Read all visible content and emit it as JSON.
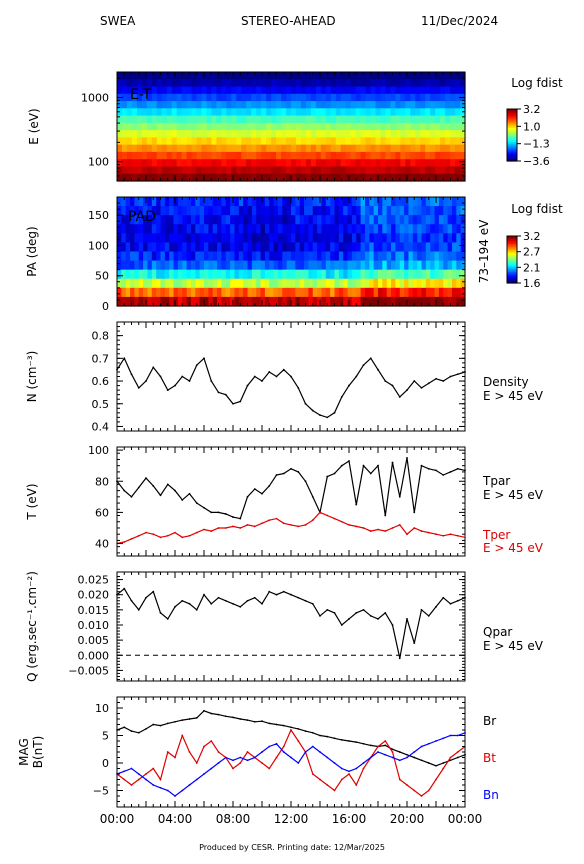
{
  "header": {
    "instrument": "SWEA",
    "spacecraft": "STEREO-AHEAD",
    "date": "11/Dec/2024"
  },
  "footer": "Produced by CESR.    Printing date: 12/Mar/2025",
  "colors": {
    "black": "#000000",
    "red": "#e00000",
    "blue": "#0000ff"
  },
  "time_axis": {
    "labels": [
      "00:00",
      "04:00",
      "08:00",
      "12:00",
      "16:00",
      "20:00",
      "00:00"
    ],
    "range_hours": [
      0,
      24
    ]
  },
  "chart_data": [
    {
      "type": "heatmap",
      "panel_label": "E-T",
      "ylabel": "E (eV)",
      "yscale": "log",
      "ylim": [
        50,
        2500
      ],
      "yticks": [
        "1000",
        "100"
      ],
      "colorbar": {
        "title": "Log fdist",
        "ticks": [
          "3.2",
          "1.0",
          "−1.3",
          "−3.6"
        ]
      },
      "energy_bands_eV": [
        2200,
        1700,
        1300,
        1000,
        780,
        600,
        460,
        360,
        280,
        215,
        165,
        128,
        98,
        76,
        60
      ],
      "band_log_fdist": [
        -3.6,
        -3.3,
        -2.8,
        -2.3,
        -1.8,
        -1.2,
        -0.6,
        -0.1,
        0.4,
        0.9,
        1.4,
        1.9,
        2.4,
        2.8,
        3.2
      ]
    },
    {
      "type": "heatmap",
      "panel_label": "PAD",
      "ylabel": "PA (deg)",
      "ylim": [
        0,
        180
      ],
      "yticks": [
        "150",
        "100",
        "50",
        "0"
      ],
      "right_label": "73–194 eV",
      "colorbar": {
        "title": "Log fdist",
        "ticks": [
          "3.2",
          "2.7",
          "2.1",
          "1.6"
        ]
      },
      "pitch_angle_bands_deg": [
        175,
        160,
        145,
        130,
        115,
        100,
        85,
        70,
        55,
        40,
        25,
        10
      ],
      "band_log_fdist": [
        1.85,
        1.82,
        1.8,
        1.78,
        1.76,
        1.78,
        1.85,
        1.95,
        2.2,
        2.5,
        2.85,
        3.1
      ]
    },
    {
      "type": "line",
      "ylabel": "N (cm⁻³)",
      "ylim": [
        0.38,
        0.86
      ],
      "yticks": [
        "0.8",
        "0.7",
        "0.6",
        "0.5",
        "0.4"
      ],
      "series": [
        {
          "name": "Density",
          "sublabel": "E > 45 eV",
          "color": "#000000",
          "x": [
            0,
            0.5,
            1,
            1.5,
            2,
            2.5,
            3,
            3.5,
            4,
            4.5,
            5,
            5.5,
            6,
            6.5,
            7,
            7.5,
            8,
            8.5,
            9,
            9.5,
            10,
            10.5,
            11,
            11.5,
            12,
            12.5,
            13,
            13.5,
            14,
            14.5,
            15,
            15.5,
            16,
            16.5,
            17,
            17.5,
            18,
            18.5,
            19,
            19.5,
            20,
            20.5,
            21,
            21.5,
            22,
            22.5,
            23,
            23.5,
            24
          ],
          "y": [
            0.65,
            0.7,
            0.63,
            0.57,
            0.6,
            0.66,
            0.62,
            0.56,
            0.58,
            0.62,
            0.6,
            0.67,
            0.7,
            0.6,
            0.55,
            0.54,
            0.5,
            0.51,
            0.58,
            0.62,
            0.6,
            0.64,
            0.62,
            0.65,
            0.62,
            0.57,
            0.5,
            0.47,
            0.45,
            0.44,
            0.46,
            0.53,
            0.58,
            0.62,
            0.67,
            0.7,
            0.65,
            0.6,
            0.58,
            0.53,
            0.56,
            0.6,
            0.57,
            0.59,
            0.61,
            0.6,
            0.62,
            0.63,
            0.64
          ]
        }
      ]
    },
    {
      "type": "line",
      "ylabel": "T (eV)",
      "ylim": [
        32,
        102
      ],
      "yticks": [
        "100",
        "80",
        "60",
        "40"
      ],
      "series": [
        {
          "name": "Tpar",
          "sublabel": "E > 45 eV",
          "color": "#000000",
          "x": [
            0,
            0.5,
            1,
            1.5,
            2,
            2.5,
            3,
            3.5,
            4,
            4.5,
            5,
            5.5,
            6,
            6.5,
            7,
            7.5,
            8,
            8.5,
            9,
            9.5,
            10,
            10.5,
            11,
            11.5,
            12,
            12.5,
            13,
            13.5,
            14,
            14.5,
            15,
            15.5,
            16,
            16.5,
            17,
            17.5,
            18,
            18.5,
            19,
            19.5,
            20,
            20.5,
            21,
            21.5,
            22,
            22.5,
            23,
            23.5,
            24
          ],
          "y": [
            80,
            74,
            70,
            76,
            82,
            77,
            71,
            78,
            74,
            68,
            72,
            66,
            63,
            60,
            60,
            59,
            57,
            56,
            70,
            75,
            72,
            77,
            84,
            85,
            88,
            86,
            80,
            70,
            60,
            83,
            85,
            90,
            93,
            65,
            90,
            85,
            90,
            58,
            92,
            70,
            95,
            60,
            90,
            88,
            87,
            84,
            86,
            88,
            87
          ]
        },
        {
          "name": "Tper",
          "sublabel": "E > 45 eV",
          "color": "#e00000",
          "x": [
            0,
            0.5,
            1,
            1.5,
            2,
            2.5,
            3,
            3.5,
            4,
            4.5,
            5,
            5.5,
            6,
            6.5,
            7,
            7.5,
            8,
            8.5,
            9,
            9.5,
            10,
            10.5,
            11,
            11.5,
            12,
            12.5,
            13,
            13.5,
            14,
            14.5,
            15,
            15.5,
            16,
            16.5,
            17,
            17.5,
            18,
            18.5,
            19,
            19.5,
            20,
            20.5,
            21,
            21.5,
            22,
            22.5,
            23,
            23.5,
            24
          ],
          "y": [
            40,
            41,
            43,
            45,
            47,
            46,
            44,
            45,
            47,
            44,
            45,
            47,
            49,
            48,
            50,
            50,
            51,
            50,
            52,
            51,
            53,
            55,
            56,
            53,
            52,
            51,
            52,
            55,
            60,
            58,
            56,
            54,
            52,
            51,
            50,
            48,
            49,
            48,
            50,
            52,
            46,
            50,
            48,
            47,
            46,
            45,
            46,
            45,
            44
          ]
        }
      ]
    },
    {
      "type": "line",
      "ylabel": "Q (erg.sec⁻¹.cm⁻²)",
      "ylim": [
        -0.0085,
        0.0275
      ],
      "yticks": [
        "0.025",
        "0.020",
        "0.015",
        "0.010",
        "0.005",
        "0.000",
        "−0.005"
      ],
      "zero_line": "dashed",
      "series": [
        {
          "name": "Qpar",
          "sublabel": "E > 45 eV",
          "color": "#000000",
          "x": [
            0,
            0.5,
            1,
            1.5,
            2,
            2.5,
            3,
            3.5,
            4,
            4.5,
            5,
            5.5,
            6,
            6.5,
            7,
            7.5,
            8,
            8.5,
            9,
            9.5,
            10,
            10.5,
            11,
            11.5,
            12,
            12.5,
            13,
            13.5,
            14,
            14.5,
            15,
            15.5,
            16,
            16.5,
            17,
            17.5,
            18,
            18.5,
            19,
            19.5,
            20,
            20.5,
            21,
            21.5,
            22,
            22.5,
            23,
            23.5,
            24
          ],
          "y": [
            0.02,
            0.022,
            0.018,
            0.015,
            0.019,
            0.021,
            0.014,
            0.012,
            0.016,
            0.018,
            0.017,
            0.015,
            0.02,
            0.017,
            0.019,
            0.018,
            0.017,
            0.016,
            0.018,
            0.019,
            0.017,
            0.021,
            0.02,
            0.021,
            0.02,
            0.019,
            0.018,
            0.017,
            0.013,
            0.015,
            0.014,
            0.01,
            0.012,
            0.014,
            0.015,
            0.013,
            0.012,
            0.014,
            0.01,
            -0.001,
            0.012,
            0.004,
            0.015,
            0.013,
            0.016,
            0.019,
            0.017,
            0.018,
            0.019
          ]
        }
      ]
    },
    {
      "type": "line",
      "ylabel": "MAG",
      "ylabel2": "B(nT)",
      "ylim": [
        -8,
        12
      ],
      "yticks": [
        "10",
        "5",
        "0",
        "−5"
      ],
      "xlim": [
        0,
        24
      ],
      "series": [
        {
          "name": "Br",
          "color": "#000000",
          "x": [
            0,
            0.5,
            1,
            1.5,
            2,
            2.5,
            3,
            3.5,
            4,
            4.5,
            5,
            5.5,
            6,
            6.5,
            7,
            7.5,
            8,
            8.5,
            9,
            9.5,
            10,
            10.5,
            11,
            11.5,
            12,
            12.5,
            13,
            13.5,
            14,
            14.5,
            15,
            15.5,
            16,
            16.5,
            17,
            17.5,
            18,
            18.5,
            19,
            19.5,
            20,
            20.5,
            21,
            21.5,
            22,
            22.5,
            23,
            23.5,
            24
          ],
          "y": [
            6,
            6.5,
            5.8,
            5.5,
            6.2,
            7,
            6.8,
            7.2,
            7.5,
            7.8,
            8,
            8.2,
            9.5,
            9,
            8.8,
            8.5,
            8.3,
            8,
            7.8,
            7.5,
            7.6,
            7.2,
            7,
            6.8,
            6.5,
            6.2,
            5.8,
            5.5,
            5,
            4.8,
            4.5,
            4.2,
            4,
            3.8,
            3.5,
            3.2,
            3,
            3.2,
            2.5,
            2,
            1.5,
            1,
            0.5,
            0,
            -0.5,
            0,
            0.5,
            1,
            1.5
          ]
        },
        {
          "name": "Bt",
          "color": "#e00000",
          "x": [
            0,
            0.5,
            1,
            1.5,
            2,
            2.5,
            3,
            3.5,
            4,
            4.5,
            5,
            5.5,
            6,
            6.5,
            7,
            7.5,
            8,
            8.5,
            9,
            9.5,
            10,
            10.5,
            11,
            11.5,
            12,
            12.5,
            13,
            13.5,
            14,
            14.5,
            15,
            15.5,
            16,
            16.5,
            17,
            17.5,
            18,
            18.5,
            19,
            19.5,
            20,
            20.5,
            21,
            21.5,
            22,
            22.5,
            23,
            23.5,
            24
          ],
          "y": [
            -2,
            -3,
            -4,
            -3,
            -2,
            -1,
            -3,
            2,
            1,
            5,
            2,
            0,
            3,
            4,
            2,
            1,
            -1,
            0,
            2,
            1,
            0,
            -1,
            1,
            3,
            6,
            4,
            2,
            -2,
            -3,
            -4,
            -5,
            -3,
            -2,
            -4,
            -1,
            1,
            3,
            4,
            2,
            -3,
            -4,
            -5,
            -6,
            -5,
            -3,
            -1,
            1,
            2,
            3
          ]
        },
        {
          "name": "Bn",
          "color": "#0000ff",
          "x": [
            0,
            0.5,
            1,
            1.5,
            2,
            2.5,
            3,
            3.5,
            4,
            4.5,
            5,
            5.5,
            6,
            6.5,
            7,
            7.5,
            8,
            8.5,
            9,
            9.5,
            10,
            10.5,
            11,
            11.5,
            12,
            12.5,
            13,
            13.5,
            14,
            14.5,
            15,
            15.5,
            16,
            16.5,
            17,
            17.5,
            18,
            18.5,
            19,
            19.5,
            20,
            20.5,
            21,
            21.5,
            22,
            22.5,
            23,
            23.5,
            24
          ],
          "y": [
            -2,
            -1.5,
            -1,
            -2,
            -3,
            -4,
            -4.5,
            -5,
            -6,
            -5,
            -4,
            -3,
            -2,
            -1,
            0,
            1,
            0.5,
            1,
            0.5,
            1,
            2,
            3,
            3.5,
            2,
            1,
            0,
            2,
            3,
            2,
            1,
            0,
            -1,
            -1.5,
            -1,
            0,
            1,
            2,
            1.5,
            1,
            0.5,
            1,
            2,
            3,
            3.5,
            4,
            4.5,
            5,
            5,
            5.5
          ]
        }
      ]
    }
  ]
}
